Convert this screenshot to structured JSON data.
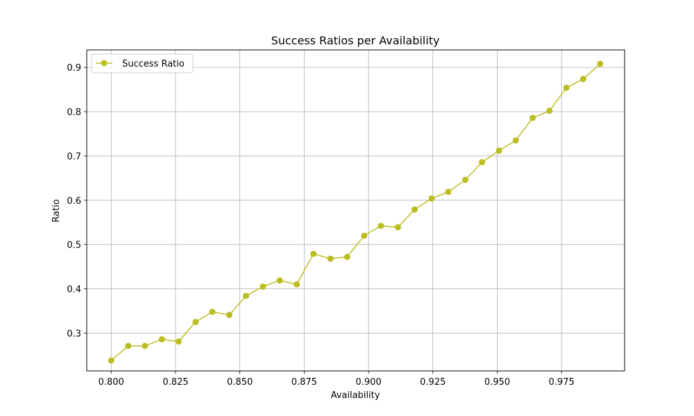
{
  "chart_data": {
    "type": "line",
    "title": "Success Ratios per Availability",
    "xlabel": "Availability",
    "ylabel": "Ratio",
    "xlim": [
      0.7905,
      0.9995
    ],
    "ylim": [
      0.2145,
      0.9395
    ],
    "xticks": [
      0.8,
      0.825,
      0.85,
      0.875,
      0.9,
      0.925,
      0.95,
      0.975
    ],
    "xtick_labels": [
      "0.800",
      "0.825",
      "0.850",
      "0.875",
      "0.900",
      "0.925",
      "0.950",
      "0.975"
    ],
    "yticks": [
      0.3,
      0.4,
      0.5,
      0.6,
      0.7,
      0.8,
      0.9
    ],
    "ytick_labels": [
      "0.3",
      "0.4",
      "0.5",
      "0.6",
      "0.7",
      "0.8",
      "0.9"
    ],
    "grid": true,
    "legend": "top-left",
    "series": [
      {
        "name": "Success Ratio",
        "color": "#bcbd22",
        "marker": "circle",
        "x": [
          0.8,
          0.8066,
          0.8131,
          0.8197,
          0.8262,
          0.8328,
          0.8393,
          0.8459,
          0.8524,
          0.859,
          0.8655,
          0.8721,
          0.8786,
          0.8852,
          0.8917,
          0.8983,
          0.9048,
          0.9114,
          0.9179,
          0.9245,
          0.931,
          0.9376,
          0.9441,
          0.9507,
          0.9572,
          0.9638,
          0.9703,
          0.9769,
          0.9834,
          0.99
        ],
        "y": [
          0.238,
          0.271,
          0.271,
          0.286,
          0.281,
          0.325,
          0.348,
          0.341,
          0.384,
          0.405,
          0.419,
          0.41,
          0.479,
          0.468,
          0.472,
          0.52,
          0.542,
          0.539,
          0.579,
          0.604,
          0.619,
          0.646,
          0.686,
          0.712,
          0.735,
          0.786,
          0.802,
          0.854,
          0.874,
          0.908
        ]
      }
    ]
  }
}
